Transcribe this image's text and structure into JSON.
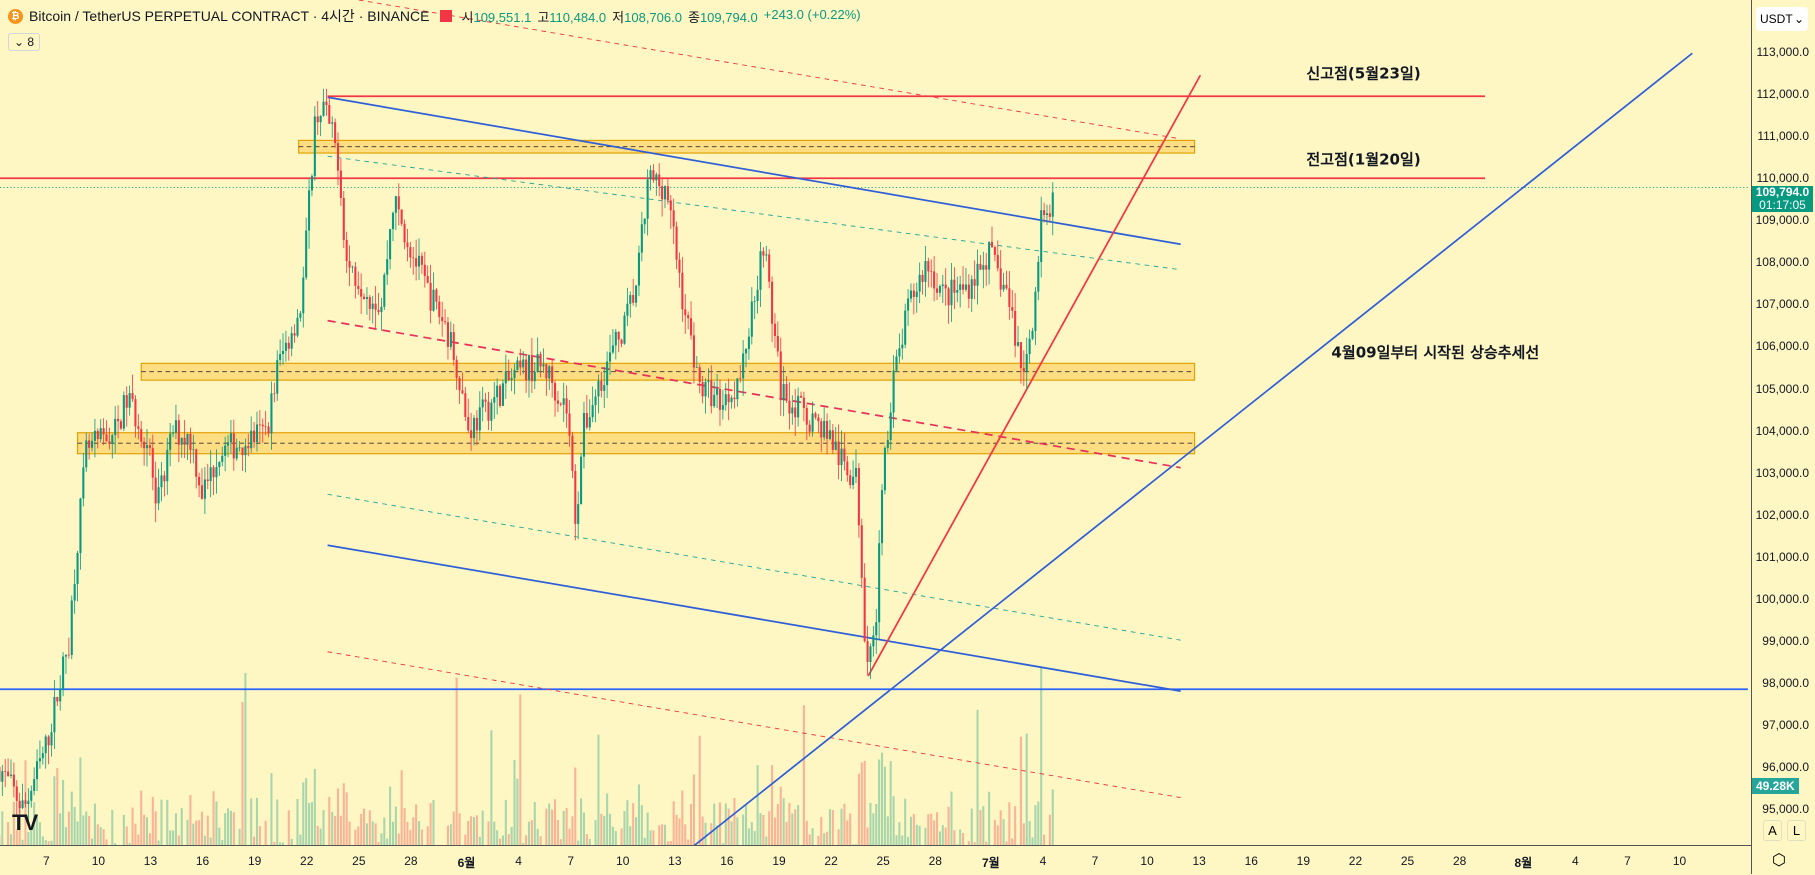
{
  "header": {
    "symbol": "Bitcoin / TetherUS PERPETUAL CONTRACT · 4시간 · BINANCE",
    "open_label": "시",
    "open": "109,551.1",
    "high_label": "고",
    "high": "110,484.0",
    "low_label": "저",
    "low": "108,706.0",
    "close_label": "종",
    "close": "109,794.0",
    "change": "+243.0 (+0.22%)",
    "indicator_count": "8"
  },
  "axis": {
    "currency": "USDT",
    "current_price": "109,794.0",
    "countdown": "01:17:05",
    "volume_label": "49.28K",
    "auto": "A",
    "log": "L"
  },
  "colors": {
    "background": "#fef7c3",
    "up": "#089981",
    "down": "#f23645",
    "trend_blue": "#2962ff",
    "trend_red": "#f23645",
    "zone": "#ffc94d"
  },
  "chart_data": {
    "type": "candlestick",
    "title": "Bitcoin / TetherUS PERPETUAL CONTRACT 4h",
    "ylim": [
      94500,
      113600
    ],
    "price_ticks": [
      "113,000.0",
      "112,000.0",
      "111,000.0",
      "110,000.0",
      "109,000.0",
      "108,000.0",
      "107,000.0",
      "106,000.0",
      "105,000.0",
      "104,000.0",
      "103,000.0",
      "102,000.0",
      "101,000.0",
      "100,000.0",
      "99,000.0",
      "98,000.0",
      "97,000.0",
      "96,000.0",
      "95,000.0"
    ],
    "time_ticks": [
      "7",
      "10",
      "13",
      "16",
      "19",
      "22",
      "25",
      "28",
      "6월",
      "4",
      "7",
      "10",
      "13",
      "16",
      "19",
      "22",
      "25",
      "28",
      "7월",
      "4",
      "7",
      "10",
      "13",
      "16",
      "19",
      "22",
      "25",
      "28",
      "8월",
      "4",
      "7",
      "10"
    ],
    "price_path_days_from_may7": [
      [
        -2.7,
        96000
      ],
      [
        -1.3,
        95000
      ],
      [
        0,
        96500
      ],
      [
        1.3,
        99000
      ],
      [
        1.7,
        101000
      ],
      [
        2.3,
        103500
      ],
      [
        4,
        104000
      ],
      [
        4.7,
        104800
      ],
      [
        6,
        103500
      ],
      [
        6.3,
        102000
      ],
      [
        7.3,
        104000
      ],
      [
        8.3,
        103800
      ],
      [
        9,
        102500
      ],
      [
        10,
        103500
      ],
      [
        11.7,
        103800
      ],
      [
        12.7,
        104000
      ],
      [
        13.3,
        105500
      ],
      [
        14.7,
        107000
      ],
      [
        15.5,
        111500
      ],
      [
        16,
        111700
      ],
      [
        16.8,
        110500
      ],
      [
        17.3,
        108000
      ],
      [
        18.7,
        107200
      ],
      [
        19.3,
        107000
      ],
      [
        20,
        109500
      ],
      [
        21,
        108300
      ],
      [
        22,
        107300
      ],
      [
        23,
        106500
      ],
      [
        23.7,
        105500
      ],
      [
        24.3,
        104000
      ],
      [
        25.3,
        104500
      ],
      [
        26.7,
        105200
      ],
      [
        27.7,
        105500
      ],
      [
        28.7,
        105500
      ],
      [
        30,
        104500
      ],
      [
        30.5,
        101800
      ],
      [
        30.9,
        104000
      ],
      [
        32,
        105300
      ],
      [
        33.3,
        106500
      ],
      [
        34,
        107500
      ],
      [
        34.7,
        110000
      ],
      [
        35.7,
        109800
      ],
      [
        36.7,
        107000
      ],
      [
        37.7,
        105000
      ],
      [
        39,
        104700
      ],
      [
        40,
        105300
      ],
      [
        41.3,
        108500
      ],
      [
        42.3,
        105000
      ],
      [
        43.3,
        104500
      ],
      [
        45,
        104000
      ],
      [
        45.7,
        103300
      ],
      [
        46.7,
        102800
      ],
      [
        47.2,
        98800
      ],
      [
        47.7,
        99000
      ],
      [
        48.3,
        103500
      ],
      [
        48.7,
        105000
      ],
      [
        49.7,
        107000
      ],
      [
        50.7,
        108000
      ],
      [
        51.7,
        107200
      ],
      [
        53,
        107400
      ],
      [
        54.3,
        108200
      ],
      [
        55.3,
        107300
      ],
      [
        56.3,
        105300
      ],
      [
        56.9,
        107000
      ],
      [
        57.3,
        109000
      ],
      [
        57.8,
        108800
      ],
      [
        58.1,
        109794
      ]
    ],
    "horizontal_levels": [
      {
        "price": 111950,
        "label": "신고점(5월23일)"
      },
      {
        "price": 110000,
        "label": "전고점(1월20일)"
      },
      {
        "price": 97850
      }
    ],
    "zones": [
      [
        110600,
        110900
      ],
      [
        105200,
        105600
      ],
      [
        103450,
        103950
      ]
    ],
    "trendline_label": "4월09일부터 시작된 상승추세선"
  }
}
